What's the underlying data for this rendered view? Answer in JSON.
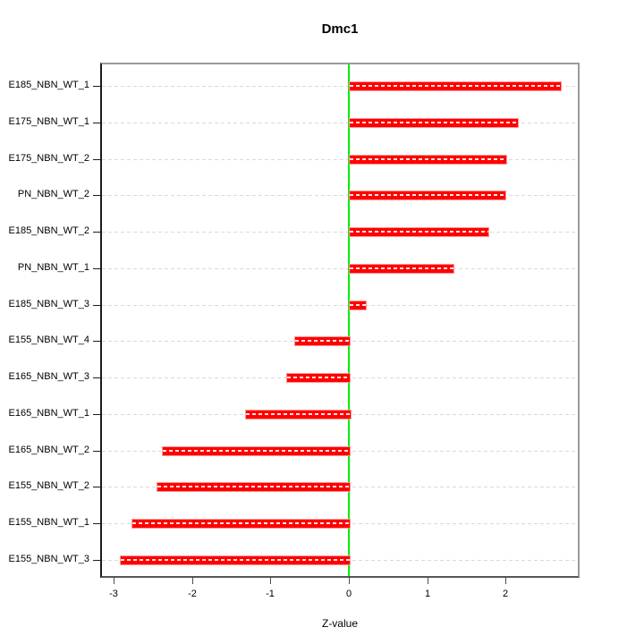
{
  "chart_data": {
    "type": "bar",
    "orientation": "horizontal",
    "title": "Dmc1",
    "xlabel": "Z-value",
    "ylabel": "",
    "categories": [
      "E185_NBN_WT_1",
      "E175_NBN_WT_1",
      "E175_NBN_WT_2",
      "PN_NBN_WT_2",
      "E185_NBN_WT_2",
      "PN_NBN_WT_1",
      "E185_NBN_WT_3",
      "E155_NBN_WT_4",
      "E165_NBN_WT_3",
      "E165_NBN_WT_1",
      "E165_NBN_WT_2",
      "E155_NBN_WT_2",
      "E155_NBN_WT_1",
      "E155_NBN_WT_3"
    ],
    "values": [
      2.69,
      2.14,
      2.0,
      1.98,
      1.77,
      1.32,
      0.21,
      -0.7,
      -0.8,
      -1.33,
      -2.38,
      -2.45,
      -2.77,
      -2.92
    ],
    "x_ticks": [
      "-3",
      "-2",
      "-1",
      "0",
      "1",
      "2"
    ],
    "x_tick_values": [
      -3,
      -2,
      -1,
      0,
      1,
      2
    ],
    "xlim": [
      -3.15,
      2.92
    ],
    "grid": "dashed-horizontal",
    "legend_position": "none",
    "colors": {
      "bar_fill": "#ff0000",
      "bar_border": "#ff9595",
      "zero_line": "#00ee00",
      "gridline": "#d9d9d9",
      "box_border": "#9a9a9a",
      "axis": "#1c1c1c",
      "background": "#ffffff"
    }
  }
}
